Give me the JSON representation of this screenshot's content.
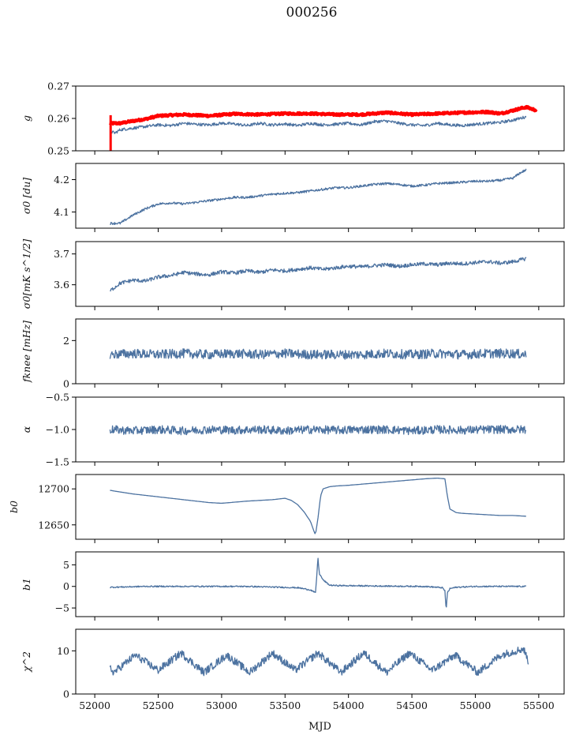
{
  "figure": {
    "title": "000256",
    "xlabel": "MJD",
    "x_ticks": [
      52000,
      52500,
      53000,
      53500,
      54000,
      54500,
      55000,
      55500
    ],
    "series_color": "#4c72a0",
    "overlay_color": "#ff0000"
  },
  "chart_data": [
    {
      "type": "line",
      "id": "g",
      "ylabel": "g",
      "ylim": [
        0.25,
        0.27
      ],
      "yticks": [
        "0.25",
        "0.26",
        "0.27"
      ],
      "xlim": [
        51850,
        55700
      ],
      "series": [
        {
          "role": "overlay",
          "color": "#ff0000",
          "x": [
            52120,
            52140,
            52200,
            52300,
            52400,
            52500,
            52700,
            52900,
            53100,
            53300,
            53500,
            53700,
            53900,
            54100,
            54300,
            54500,
            54700,
            54900,
            55100,
            55200,
            55300,
            55400,
            55480
          ],
          "y": [
            0.2585,
            0.2585,
            0.2585,
            0.2592,
            0.2598,
            0.2608,
            0.2612,
            0.2608,
            0.2614,
            0.2612,
            0.2615,
            0.2615,
            0.2612,
            0.2612,
            0.2618,
            0.2612,
            0.2615,
            0.2618,
            0.262,
            0.2615,
            0.2625,
            0.2635,
            0.2625
          ]
        },
        {
          "role": "series",
          "x": [
            52120,
            52160,
            52200,
            52300,
            52400,
            52500,
            52600,
            52700,
            52800,
            52900,
            53000,
            53100,
            53200,
            53300,
            53400,
            53500,
            53600,
            53700,
            53800,
            53900,
            54000,
            54100,
            54200,
            54300,
            54400,
            54500,
            54600,
            54700,
            54800,
            54900,
            55000,
            55100,
            55200,
            55300,
            55400
          ],
          "y": [
            0.256,
            0.2555,
            0.2565,
            0.257,
            0.2575,
            0.258,
            0.2578,
            0.2585,
            0.2582,
            0.258,
            0.2585,
            0.2583,
            0.2578,
            0.2585,
            0.258,
            0.2583,
            0.2578,
            0.2585,
            0.258,
            0.2582,
            0.2585,
            0.258,
            0.259,
            0.2592,
            0.2585,
            0.258,
            0.2578,
            0.2585,
            0.258,
            0.2578,
            0.2582,
            0.2585,
            0.2588,
            0.2595,
            0.2605
          ]
        }
      ],
      "annotations": [
        "Vertical red dip near MJD 52120 from 0.261 down to 0.250"
      ]
    },
    {
      "type": "line",
      "id": "sigma0",
      "ylabel": "σ0 [du]",
      "ylim": [
        4.05,
        4.25
      ],
      "yticks": [
        "4.1",
        "4.2"
      ],
      "xlim": [
        51850,
        55700
      ],
      "series": [
        {
          "x": [
            52120,
            52200,
            52300,
            52400,
            52500,
            52600,
            52700,
            52800,
            52900,
            53000,
            53100,
            53200,
            53300,
            53400,
            53500,
            53600,
            53700,
            53800,
            53900,
            54000,
            54100,
            54200,
            54300,
            54400,
            54500,
            54600,
            54700,
            54800,
            54900,
            55000,
            55100,
            55200,
            55300,
            55350,
            55400
          ],
          "y": [
            4.065,
            4.065,
            4.09,
            4.11,
            4.125,
            4.128,
            4.125,
            4.13,
            4.135,
            4.14,
            4.145,
            4.145,
            4.15,
            4.155,
            4.158,
            4.16,
            4.165,
            4.17,
            4.175,
            4.175,
            4.18,
            4.185,
            4.188,
            4.185,
            4.18,
            4.183,
            4.188,
            4.19,
            4.192,
            4.195,
            4.195,
            4.198,
            4.205,
            4.22,
            4.23
          ]
        }
      ]
    },
    {
      "type": "line",
      "id": "sigma0_mks",
      "ylabel": "σ0[mK s^1/2]",
      "ylim": [
        3.53,
        3.74
      ],
      "yticks": [
        "3.6",
        "3.7"
      ],
      "xlim": [
        51850,
        55700
      ],
      "series": [
        {
          "x": [
            52120,
            52200,
            52300,
            52400,
            52500,
            52600,
            52700,
            52800,
            52900,
            53000,
            53100,
            53200,
            53300,
            53400,
            53500,
            53600,
            53700,
            53800,
            53900,
            54000,
            54100,
            54200,
            54300,
            54400,
            54500,
            54600,
            54700,
            54800,
            54900,
            55000,
            55100,
            55200,
            55300,
            55400
          ],
          "y": [
            3.58,
            3.605,
            3.615,
            3.612,
            3.625,
            3.63,
            3.64,
            3.635,
            3.632,
            3.642,
            3.638,
            3.645,
            3.64,
            3.648,
            3.645,
            3.65,
            3.655,
            3.65,
            3.655,
            3.66,
            3.658,
            3.662,
            3.665,
            3.66,
            3.665,
            3.668,
            3.665,
            3.67,
            3.668,
            3.672,
            3.675,
            3.67,
            3.675,
            3.685
          ]
        }
      ]
    },
    {
      "type": "line",
      "id": "fknee",
      "ylabel": "fknee [mHz]",
      "ylim": [
        0,
        3
      ],
      "yticks": [
        "0",
        "2"
      ],
      "xlim": [
        51850,
        55700
      ],
      "series": [
        {
          "x": [
            52120,
            52300,
            52500,
            52700,
            52900,
            53100,
            53300,
            53500,
            53700,
            53900,
            54100,
            54300,
            54500,
            54700,
            54900,
            55100,
            55300,
            55400
          ],
          "y": [
            1.35,
            1.4,
            1.35,
            1.4,
            1.35,
            1.4,
            1.35,
            1.4,
            1.35,
            1.35,
            1.35,
            1.4,
            1.35,
            1.4,
            1.35,
            1.4,
            1.4,
            1.35
          ]
        }
      ]
    },
    {
      "type": "line",
      "id": "alpha",
      "ylabel": "α",
      "ylim": [
        -1.5,
        -0.5
      ],
      "yticks": [
        "−1.5",
        "−1.0",
        "−0.5"
      ],
      "xlim": [
        51850,
        55700
      ],
      "series": [
        {
          "x": [
            52120,
            52300,
            52500,
            52700,
            52900,
            53100,
            53300,
            53500,
            53700,
            53900,
            54100,
            54300,
            54500,
            54700,
            54900,
            55100,
            55300,
            55400
          ],
          "y": [
            -1.0,
            -1.02,
            -1.0,
            -1.02,
            -1.0,
            -1.01,
            -1.0,
            -1.02,
            -1.0,
            -1.01,
            -1.0,
            -1.0,
            -1.02,
            -1.0,
            -1.01,
            -1.0,
            -1.0,
            -1.0
          ]
        }
      ]
    },
    {
      "type": "line",
      "id": "b0",
      "ylabel": "b0",
      "ylim": [
        12630,
        12720
      ],
      "yticks": [
        "12650",
        "12700"
      ],
      "xlim": [
        51850,
        55700
      ],
      "series": [
        {
          "x": [
            52120,
            52300,
            52500,
            52700,
            52900,
            53000,
            53200,
            53400,
            53500,
            53550,
            53600,
            53650,
            53700,
            53720,
            53740,
            53760,
            53780,
            53800,
            53850,
            53900,
            54000,
            54200,
            54400,
            54600,
            54700,
            54760,
            54780,
            54800,
            54850,
            54900,
            55000,
            55100,
            55200,
            55300,
            55400
          ],
          "y": [
            12698,
            12693,
            12689,
            12685,
            12681,
            12680,
            12683,
            12685,
            12687,
            12684,
            12678,
            12668,
            12655,
            12645,
            12636,
            12660,
            12690,
            12700,
            12703,
            12704,
            12705,
            12708,
            12711,
            12714,
            12715,
            12714,
            12690,
            12672,
            12667,
            12666,
            12665,
            12664,
            12663,
            12663,
            12662
          ]
        }
      ]
    },
    {
      "type": "line",
      "id": "b1",
      "ylabel": "b1",
      "ylim": [
        -7,
        8
      ],
      "yticks": [
        "−5",
        "0",
        "5"
      ],
      "xlim": [
        51850,
        55700
      ],
      "series": [
        {
          "x": [
            52120,
            52400,
            52800,
            53200,
            53600,
            53700,
            53740,
            53760,
            53770,
            53780,
            53800,
            53850,
            53900,
            54200,
            54600,
            54740,
            54760,
            54770,
            54780,
            54800,
            54850,
            55000,
            55400
          ],
          "y": [
            -0.2,
            0,
            0,
            0,
            -0.3,
            -0.8,
            -1.5,
            6.5,
            3.0,
            2.5,
            1.5,
            0.3,
            0.2,
            0.1,
            0.0,
            -0.3,
            -1.0,
            -5.5,
            -1.5,
            -0.5,
            -0.2,
            0.0,
            0.0
          ]
        }
      ]
    },
    {
      "type": "line",
      "id": "chi2",
      "ylabel": "χ^2",
      "ylim": [
        0,
        15
      ],
      "yticks": [
        "0",
        "10"
      ],
      "xlim": [
        51850,
        55700
      ],
      "series": [
        {
          "x": [
            52120,
            52150,
            52320,
            52500,
            52680,
            52860,
            53040,
            53220,
            53400,
            53580,
            53760,
            53940,
            54120,
            54300,
            54480,
            54660,
            54840,
            55020,
            55200,
            55380,
            55420
          ],
          "y": [
            6.0,
            5.0,
            9.0,
            5.5,
            9.5,
            5.0,
            9.0,
            5.0,
            9.5,
            5.5,
            9.5,
            5.0,
            9.5,
            5.0,
            9.5,
            5.5,
            9.0,
            5.0,
            9.0,
            10.5,
            7.5
          ]
        }
      ]
    }
  ]
}
